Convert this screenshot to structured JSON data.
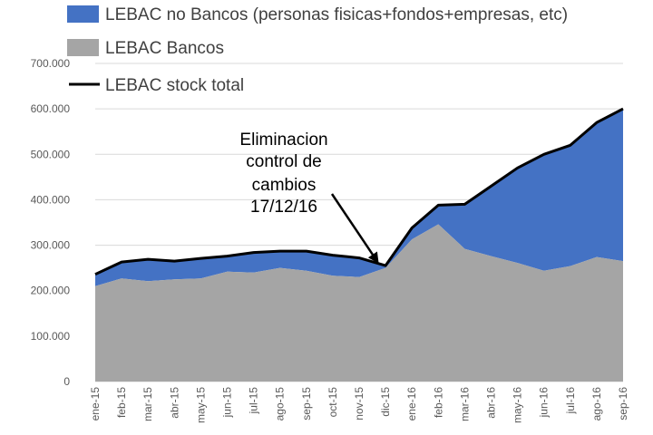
{
  "chart_data": {
    "type": "area",
    "categories": [
      "ene-15",
      "feb-15",
      "mar-15",
      "abr-15",
      "may-15",
      "jun-15",
      "jul-15",
      "ago-15",
      "sep-15",
      "oct-15",
      "nov-15",
      "dic-15",
      "ene-16",
      "feb-16",
      "mar-16",
      "abr-16",
      "may-16",
      "jun-16",
      "jul-16",
      "ago-16",
      "sep-16"
    ],
    "series": [
      {
        "name": "LEBAC Bancos",
        "kind": "area",
        "color": "#a5a5a5",
        "values": [
          210000,
          227000,
          221000,
          225000,
          227000,
          242000,
          240000,
          250000,
          244000,
          233000,
          230000,
          250000,
          313000,
          346000,
          292000,
          276000,
          261000,
          244000,
          254000,
          274000,
          265000
        ]
      },
      {
        "name": "LEBAC no Bancos (personas fisicas+fondos+empresas, etc)",
        "kind": "area",
        "color": "#4472c4",
        "values": [
          26000,
          36000,
          48000,
          40000,
          44000,
          34000,
          44000,
          37000,
          43000,
          45000,
          42000,
          5000,
          25000,
          42000,
          98000,
          154000,
          209000,
          256000,
          266000,
          296000,
          335000
        ]
      },
      {
        "name": "LEBAC stock total",
        "kind": "line",
        "color": "#000000",
        "values": [
          236000,
          263000,
          269000,
          265000,
          271000,
          276000,
          284000,
          287000,
          287000,
          278000,
          272000,
          255000,
          338000,
          388000,
          390000,
          430000,
          470000,
          500000,
          520000,
          570000,
          600000
        ]
      }
    ],
    "y_ticks": [
      "0",
      "100.000",
      "200.000",
      "300.000",
      "400.000",
      "500.000",
      "600.000",
      "700.000"
    ],
    "ylim": [
      0,
      700000
    ],
    "grid": true,
    "legend_position": "top-left",
    "annotation": {
      "lines": [
        "Eliminacion",
        "control de",
        "cambios",
        "17/12/16"
      ],
      "points_to": "dic-15"
    }
  }
}
